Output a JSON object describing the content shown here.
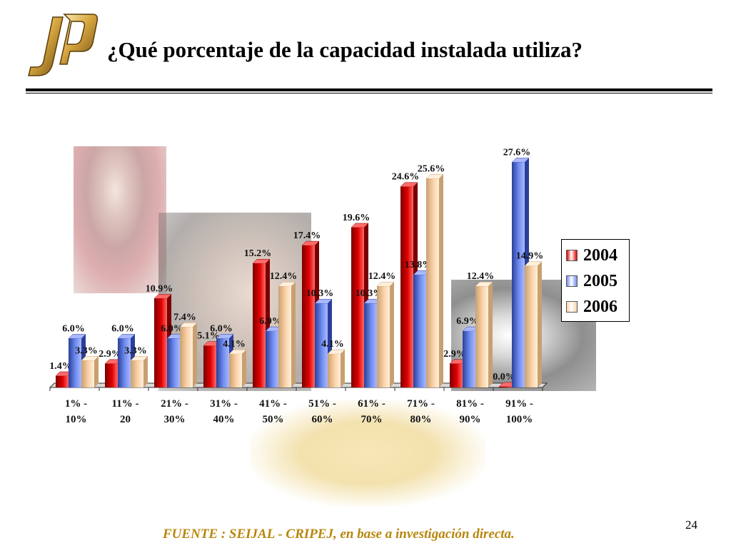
{
  "slide": {
    "title": "¿Qué porcentaje de la capacidad instalada utiliza?",
    "footer": "FUENTE :  SEIJAL - CRIPEJ,  en base a investigación directa.",
    "page_number": "24",
    "logo_text": "JP"
  },
  "colors": {
    "s2004": "#e00000",
    "s2005": "#6f8df0",
    "s2006": "#fbd2a8",
    "footer": "#b8860b",
    "rule": "#000000"
  },
  "chart_data": {
    "type": "bar",
    "categories": [
      [
        "1% -",
        "10%"
      ],
      [
        "11% -",
        "20"
      ],
      [
        "21% -",
        "30%"
      ],
      [
        "31% -",
        "40%"
      ],
      [
        "41% -",
        "50%"
      ],
      [
        "51% -",
        "60%"
      ],
      [
        "61% -",
        "70%"
      ],
      [
        "71% -",
        "80%"
      ],
      [
        "81% -",
        "90%"
      ],
      [
        "91% -",
        "100%"
      ]
    ],
    "series": [
      {
        "name": "2004",
        "values": [
          1.4,
          2.9,
          10.9,
          5.1,
          15.2,
          17.4,
          19.6,
          24.6,
          2.9,
          0.0
        ],
        "labels": [
          "1.4%",
          "2.9%",
          "10.9%",
          "5.1%",
          "15.2%",
          "17.4%",
          "19.6%",
          "24.6%",
          "2.9%",
          "0.0%"
        ]
      },
      {
        "name": "2005",
        "values": [
          6.0,
          6.0,
          6.0,
          6.0,
          6.9,
          10.3,
          10.3,
          13.8,
          6.9,
          27.6
        ],
        "labels": [
          "6.0%",
          "6.0%",
          "6.0%",
          "6.0%",
          "6.9%",
          "10.3%",
          "10.3%",
          "13.8%",
          "6.9%",
          "27.6%"
        ]
      },
      {
        "name": "2006",
        "values": [
          3.3,
          3.3,
          7.4,
          4.1,
          12.4,
          4.1,
          12.4,
          25.6,
          12.4,
          14.9
        ],
        "labels": [
          "3.3%",
          "3.3%",
          "7.4%",
          "4.1%",
          "12.4%",
          "4.1%",
          "12.4%",
          "25.6%",
          "12.4%",
          "14.9%"
        ]
      }
    ],
    "ylim": [
      0,
      30
    ],
    "grid": false,
    "legend": "right",
    "legend_entries": [
      "2004",
      "2005",
      "2006"
    ],
    "title": "",
    "xlabel": "",
    "ylabel": ""
  }
}
